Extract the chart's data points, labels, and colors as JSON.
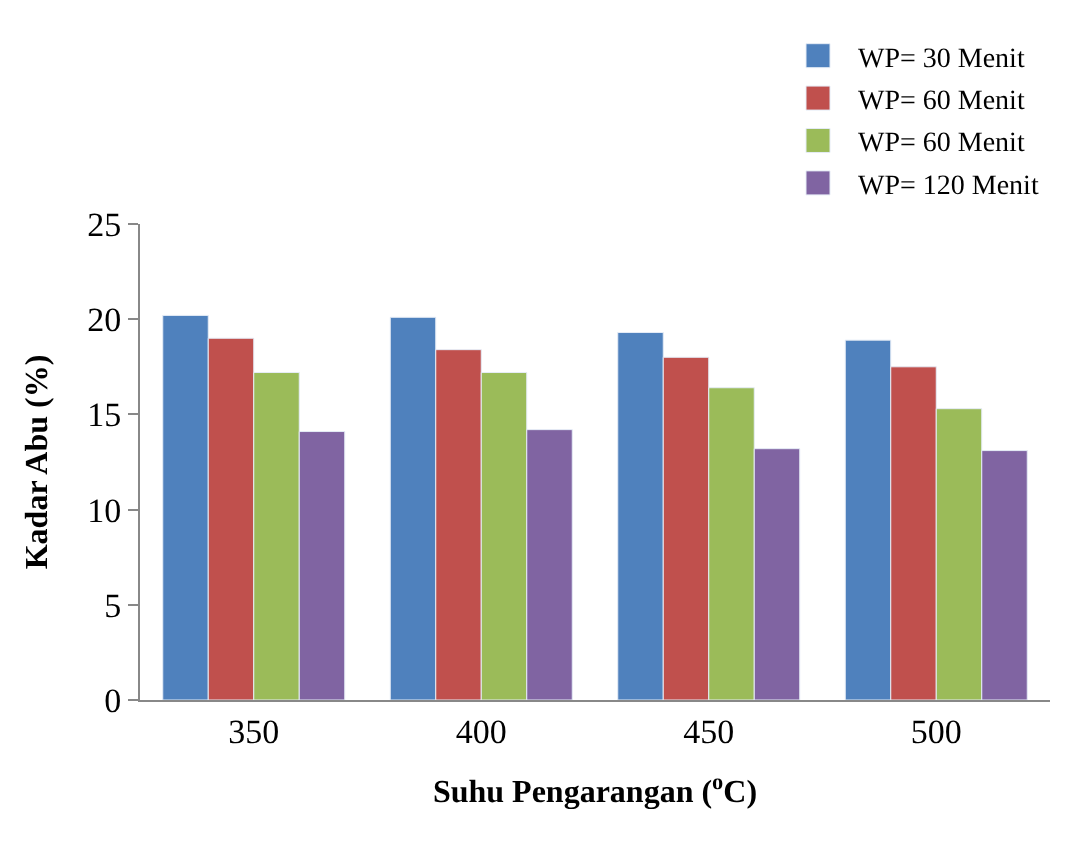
{
  "chart_data": {
    "type": "bar",
    "xlabel": "Suhu Pengarangan ($^{o}$C)",
    "ylabel": "Kadar Abu (%)",
    "categories": [
      "350",
      "400",
      "450",
      "500"
    ],
    "series": [
      {
        "name": "WP= 30 Menit",
        "color": "#4f81bd",
        "values": [
          20.2,
          20.1,
          19.3,
          18.9
        ]
      },
      {
        "name": "WP= 60 Menit",
        "color": "#c0504d",
        "values": [
          19.0,
          18.4,
          18.0,
          17.5
        ]
      },
      {
        "name": "WP= 60 Menit",
        "color": "#9bbb59",
        "values": [
          17.2,
          17.2,
          16.4,
          15.3
        ]
      },
      {
        "name": "WP= 120 Menit",
        "color": "#8064a2",
        "values": [
          14.1,
          14.2,
          13.2,
          13.1
        ]
      }
    ],
    "ylim": [
      0,
      25
    ],
    "yticks": [
      0,
      5,
      10,
      15,
      20,
      25
    ],
    "legend": "top right"
  }
}
